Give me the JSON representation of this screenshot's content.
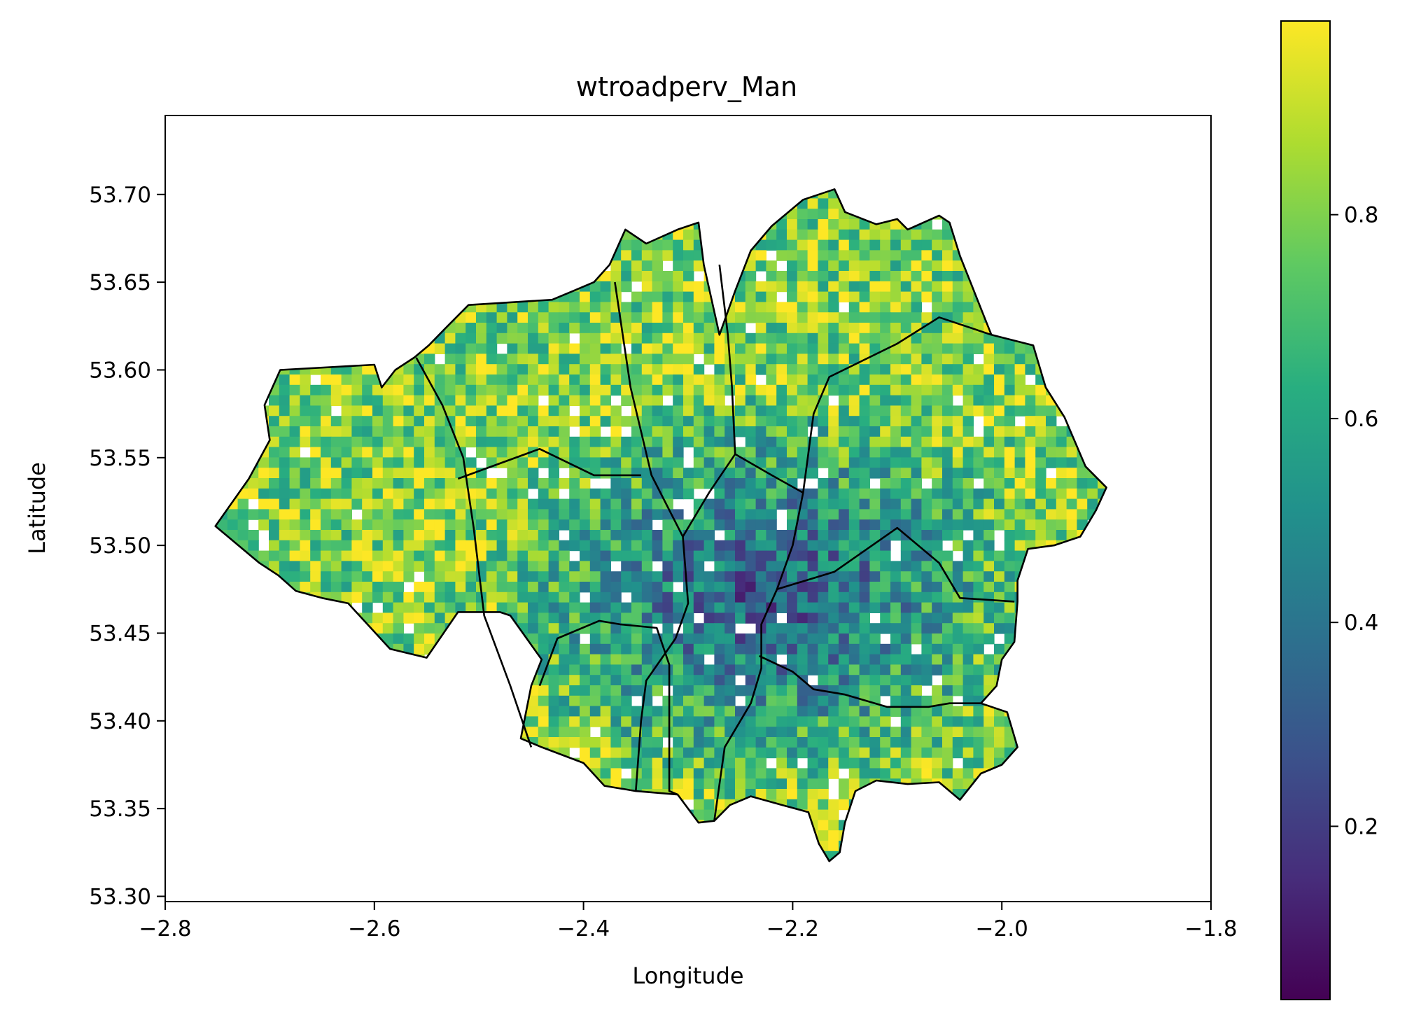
{
  "chart_data": {
    "type": "heatmap",
    "title": "wtroadperv_Man",
    "xlabel": "Longitude",
    "ylabel": "Latitude",
    "xlim": [
      -2.8,
      -1.8
    ],
    "ylim": [
      53.297,
      53.745
    ],
    "x_ticks": [
      -2.8,
      -2.6,
      -2.4,
      -2.2,
      -2.0,
      -1.8
    ],
    "x_tick_labels": [
      "−2.8",
      "−2.6",
      "−2.4",
      "−2.2",
      "−2.0",
      "−1.8"
    ],
    "y_ticks": [
      53.3,
      53.35,
      53.4,
      53.45,
      53.5,
      53.55,
      53.6,
      53.65,
      53.7
    ],
    "y_tick_labels": [
      "53.30",
      "53.35",
      "53.40",
      "53.45",
      "53.50",
      "53.55",
      "53.60",
      "53.65",
      "53.70"
    ],
    "colormap": "viridis",
    "colorbar": {
      "range": [
        0.03,
        0.99
      ],
      "ticks": [
        0.2,
        0.4,
        0.6,
        0.8
      ],
      "tick_labels": [
        "0.2",
        "0.4",
        "0.6",
        "0.8"
      ]
    },
    "grid": false,
    "boundary_color": "#000000",
    "outline": [
      [
        -2.752,
        53.511
      ],
      [
        -2.72,
        53.538
      ],
      [
        -2.7,
        53.56
      ],
      [
        -2.705,
        53.58
      ],
      [
        -2.69,
        53.6
      ],
      [
        -2.6,
        53.603
      ],
      [
        -2.593,
        53.59
      ],
      [
        -2.58,
        53.6
      ],
      [
        -2.562,
        53.607
      ],
      [
        -2.548,
        53.614
      ],
      [
        -2.53,
        53.625
      ],
      [
        -2.51,
        53.637
      ],
      [
        -2.43,
        53.64
      ],
      [
        -2.41,
        53.645
      ],
      [
        -2.39,
        53.65
      ],
      [
        -2.375,
        53.66
      ],
      [
        -2.36,
        53.68
      ],
      [
        -2.34,
        53.672
      ],
      [
        -2.31,
        53.68
      ],
      [
        -2.29,
        53.684
      ],
      [
        -2.285,
        53.66
      ],
      [
        -2.27,
        53.62
      ],
      [
        -2.255,
        53.645
      ],
      [
        -2.24,
        53.668
      ],
      [
        -2.22,
        53.682
      ],
      [
        -2.19,
        53.697
      ],
      [
        -2.16,
        53.703
      ],
      [
        -2.15,
        53.69
      ],
      [
        -2.12,
        53.683
      ],
      [
        -2.1,
        53.686
      ],
      [
        -2.09,
        53.68
      ],
      [
        -2.06,
        53.688
      ],
      [
        -2.05,
        53.684
      ],
      [
        -2.04,
        53.665
      ],
      [
        -2.03,
        53.65
      ],
      [
        -2.02,
        53.635
      ],
      [
        -2.01,
        53.62
      ],
      [
        -1.97,
        53.614
      ],
      [
        -1.958,
        53.59
      ],
      [
        -1.94,
        53.573
      ],
      [
        -1.92,
        53.545
      ],
      [
        -1.9,
        53.533
      ],
      [
        -1.91,
        53.52
      ],
      [
        -1.925,
        53.505
      ],
      [
        -1.95,
        53.5
      ],
      [
        -1.975,
        53.498
      ],
      [
        -1.985,
        53.48
      ],
      [
        -1.985,
        53.468
      ],
      [
        -1.988,
        53.445
      ],
      [
        -2.0,
        53.435
      ],
      [
        -2.005,
        53.42
      ],
      [
        -2.02,
        53.41
      ],
      [
        -1.995,
        53.405
      ],
      [
        -1.985,
        53.385
      ],
      [
        -2.0,
        53.375
      ],
      [
        -2.02,
        53.37
      ],
      [
        -2.04,
        53.355
      ],
      [
        -2.06,
        53.365
      ],
      [
        -2.09,
        53.364
      ],
      [
        -2.12,
        53.366
      ],
      [
        -2.14,
        53.36
      ],
      [
        -2.15,
        53.342
      ],
      [
        -2.155,
        53.325
      ],
      [
        -2.165,
        53.32
      ],
      [
        -2.175,
        53.33
      ],
      [
        -2.185,
        53.348
      ],
      [
        -2.21,
        53.352
      ],
      [
        -2.24,
        53.357
      ],
      [
        -2.26,
        53.352
      ],
      [
        -2.275,
        53.343
      ],
      [
        -2.29,
        53.342
      ],
      [
        -2.31,
        53.358
      ],
      [
        -2.35,
        53.36
      ],
      [
        -2.38,
        53.363
      ],
      [
        -2.4,
        53.376
      ],
      [
        -2.44,
        53.385
      ],
      [
        -2.46,
        53.39
      ],
      [
        -2.45,
        53.42
      ],
      [
        -2.44,
        53.435
      ],
      [
        -2.47,
        53.46
      ],
      [
        -2.48,
        53.462
      ],
      [
        -2.5,
        53.462
      ],
      [
        -2.52,
        53.462
      ],
      [
        -2.55,
        53.436
      ],
      [
        -2.585,
        53.441
      ],
      [
        -2.625,
        53.467
      ],
      [
        -2.65,
        53.47
      ],
      [
        -2.675,
        53.474
      ],
      [
        -2.692,
        53.483
      ],
      [
        -2.71,
        53.49
      ],
      [
        -2.752,
        53.511
      ]
    ],
    "boundaries": [
      [
        [
          -2.56,
          53.607
        ],
        [
          -2.535,
          53.58
        ],
        [
          -2.515,
          53.55
        ],
        [
          -2.505,
          53.51
        ],
        [
          -2.495,
          53.46
        ],
        [
          -2.47,
          53.42
        ],
        [
          -2.45,
          53.385
        ]
      ],
      [
        [
          -2.52,
          53.538
        ],
        [
          -2.442,
          53.555
        ],
        [
          -2.39,
          53.54
        ],
        [
          -2.345,
          53.54
        ]
      ],
      [
        [
          -2.37,
          53.65
        ],
        [
          -2.355,
          53.59
        ],
        [
          -2.335,
          53.54
        ],
        [
          -2.305,
          53.505
        ],
        [
          -2.3,
          53.467
        ],
        [
          -2.312,
          53.447
        ],
        [
          -2.34,
          53.423
        ],
        [
          -2.345,
          53.4
        ],
        [
          -2.35,
          53.36
        ]
      ],
      [
        [
          -2.442,
          53.42
        ],
        [
          -2.425,
          53.447
        ],
        [
          -2.385,
          53.457
        ],
        [
          -2.365,
          53.455
        ],
        [
          -2.33,
          53.453
        ],
        [
          -2.318,
          53.432
        ],
        [
          -2.318,
          53.36
        ],
        [
          -2.31,
          53.358
        ]
      ],
      [
        [
          -2.305,
          53.505
        ],
        [
          -2.28,
          53.53
        ],
        [
          -2.255,
          53.552
        ],
        [
          -2.22,
          53.54
        ],
        [
          -2.19,
          53.53
        ],
        [
          -2.18,
          53.575
        ],
        [
          -2.165,
          53.596
        ],
        [
          -2.1,
          53.615
        ],
        [
          -2.06,
          53.63
        ],
        [
          -2.01,
          53.62
        ]
      ],
      [
        [
          -2.255,
          53.552
        ],
        [
          -2.258,
          53.59
        ],
        [
          -2.262,
          53.62
        ],
        [
          -2.27,
          53.66
        ]
      ],
      [
        [
          -2.19,
          53.53
        ],
        [
          -2.2,
          53.5
        ],
        [
          -2.215,
          53.475
        ],
        [
          -2.23,
          53.455
        ],
        [
          -2.23,
          53.43
        ],
        [
          -2.24,
          53.41
        ],
        [
          -2.265,
          53.385
        ],
        [
          -2.275,
          53.343
        ]
      ],
      [
        [
          -2.215,
          53.475
        ],
        [
          -2.16,
          53.485
        ],
        [
          -2.1,
          53.51
        ],
        [
          -2.06,
          53.49
        ],
        [
          -2.04,
          53.47
        ],
        [
          -1.988,
          53.468
        ]
      ],
      [
        [
          -2.232,
          53.437
        ],
        [
          -2.2,
          53.428
        ],
        [
          -2.18,
          53.418
        ],
        [
          -2.15,
          53.415
        ],
        [
          -2.11,
          53.408
        ],
        [
          -2.07,
          53.408
        ],
        [
          -2.05,
          53.41
        ],
        [
          -2.02,
          53.41
        ]
      ]
    ]
  }
}
